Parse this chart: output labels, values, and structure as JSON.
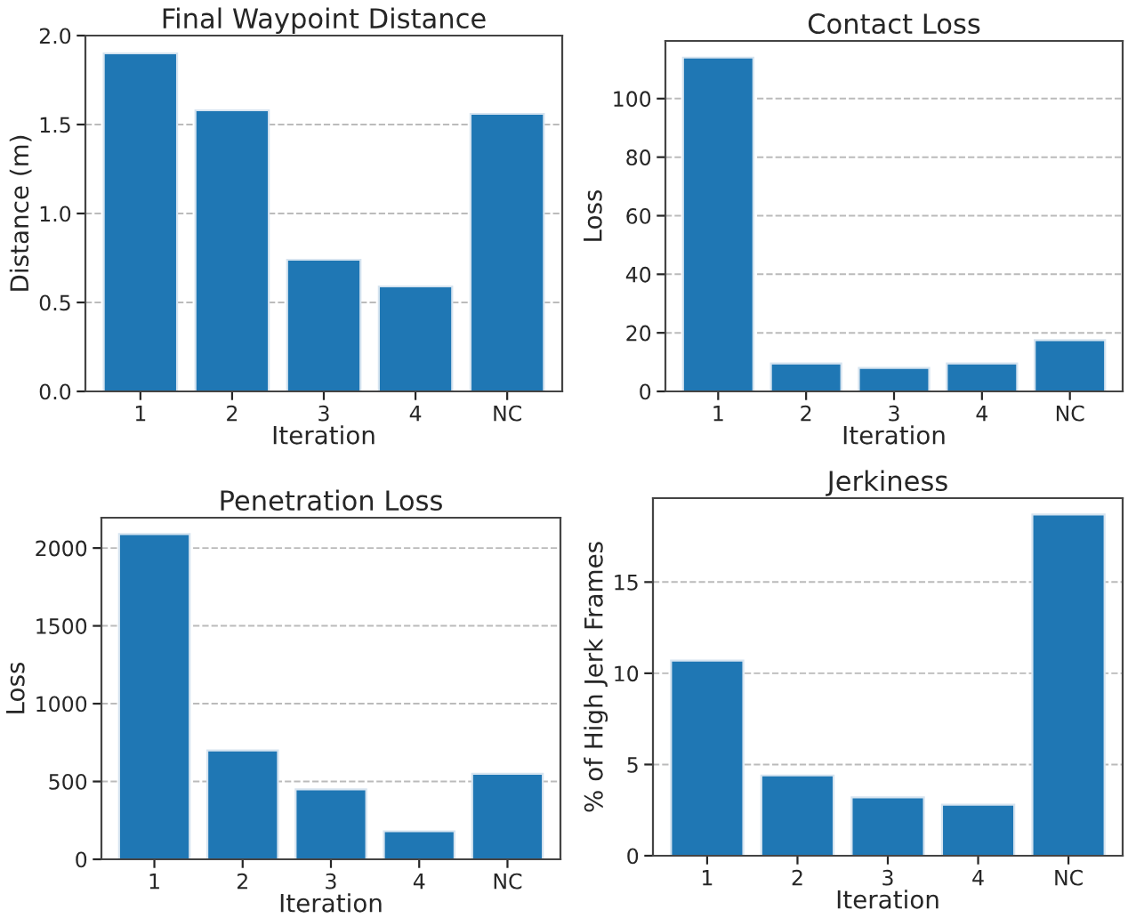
{
  "chart_data": [
    {
      "type": "bar",
      "title": "Final Waypoint Distance",
      "xlabel": "Iteration",
      "ylabel": "Distance (m)",
      "categories": [
        "1",
        "2",
        "3",
        "4",
        "NC"
      ],
      "values": [
        1.9,
        1.58,
        0.74,
        0.59,
        1.56
      ],
      "color": "#1f77b4",
      "ylim": [
        0,
        2.0
      ],
      "yticks": [
        {
          "value": 0,
          "label": "0.0"
        },
        {
          "value": 0.5,
          "label": "0.5"
        },
        {
          "value": 1.0,
          "label": "1.0"
        },
        {
          "value": 1.5,
          "label": "1.5"
        },
        {
          "value": 2.0,
          "label": "2.0"
        }
      ],
      "grid": "y",
      "line_style": "dashed"
    },
    {
      "type": "bar",
      "title": "Contact Loss",
      "xlabel": "Iteration",
      "ylabel": "Loss",
      "categories": [
        "1",
        "2",
        "3",
        "4",
        "NC"
      ],
      "values": [
        114,
        9.5,
        8,
        9.5,
        17.5
      ],
      "color": "#1f77b4",
      "ylim": [
        0,
        119.7
      ],
      "yticks": [
        0,
        20,
        40,
        60,
        80,
        100
      ],
      "grid": "y",
      "line_style": "dashed"
    },
    {
      "type": "bar",
      "title": "Penetration Loss",
      "xlabel": "Iteration",
      "ylabel": "Loss",
      "categories": [
        "1",
        "2",
        "3",
        "4",
        "NC"
      ],
      "values": [
        2090,
        700,
        450,
        180,
        550
      ],
      "color": "#1f77b4",
      "ylim": [
        0,
        2195
      ],
      "yticks": [
        0,
        500,
        1000,
        1500,
        2000
      ],
      "grid": "y",
      "line_style": "dashed"
    },
    {
      "type": "bar",
      "title": "Jerkiness",
      "xlabel": "Iteration",
      "ylabel": "% of High Jerk Frames",
      "categories": [
        "1",
        "2",
        "3",
        "4",
        "NC"
      ],
      "values": [
        10.7,
        4.4,
        3.2,
        2.8,
        18.7
      ],
      "color": "#1f77b4",
      "ylim": [
        0,
        19.6
      ],
      "yticks": [
        0,
        5,
        10,
        15
      ],
      "grid": "y",
      "line_style": "dashed"
    }
  ]
}
